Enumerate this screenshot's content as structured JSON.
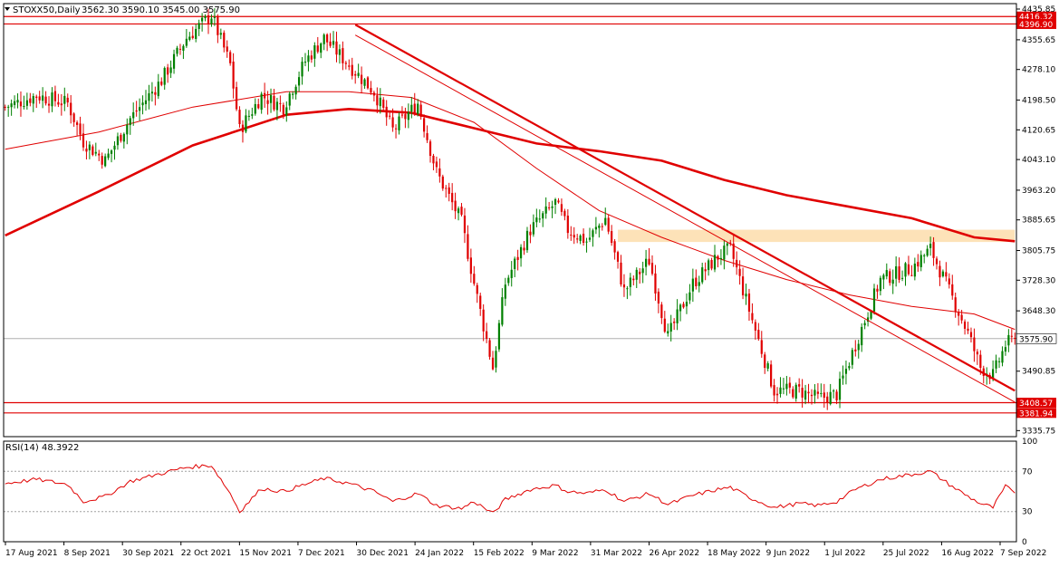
{
  "header": {
    "symbol": "STOXX50,Daily",
    "ohlc": "3562.30 3590.10 3545.00 3575.90",
    "rsi_label": "RSI(14) 48.3922"
  },
  "colors": {
    "bull": "#008000",
    "bear": "#e00000",
    "ma": "#e00000",
    "zone": "#fde2b8",
    "grid": "#c8c8c8",
    "axis": "#000000",
    "price_tag": "#e00000"
  },
  "chart_data": {
    "type": "candlestick",
    "title": "STOXX50,Daily",
    "price_axis_ticks": [
      "4435.85",
      "4355.65",
      "4278.10",
      "4198.50",
      "4120.65",
      "4043.10",
      "3963.20",
      "3885.65",
      "3805.75",
      "3728.30",
      "3648.30",
      "3490.85",
      "3335.75"
    ],
    "price_axis_range": [
      3320,
      4450
    ],
    "date_labels": [
      "17 Aug 2021",
      "8 Sep 2021",
      "30 Sep 2021",
      "22 Oct 2021",
      "15 Nov 2021",
      "7 Dec 2021",
      "30 Dec 2021",
      "24 Jan 2022",
      "15 Feb 2022",
      "9 Mar 2022",
      "31 Mar 2022",
      "26 Apr 2022",
      "18 May 2022",
      "9 Jun 2022",
      "1 Jul 2022",
      "25 Jul 2022",
      "16 Aug 2022",
      "7 Sep 2022"
    ],
    "close_anchors": [
      [
        0,
        4180
      ],
      [
        10,
        4210
      ],
      [
        20,
        4190
      ],
      [
        25,
        4090
      ],
      [
        32,
        4040
      ],
      [
        40,
        4150
      ],
      [
        50,
        4250
      ],
      [
        58,
        4360
      ],
      [
        66,
        4420
      ],
      [
        72,
        4290
      ],
      [
        75,
        4120
      ],
      [
        82,
        4210
      ],
      [
        89,
        4180
      ],
      [
        96,
        4300
      ],
      [
        102,
        4360
      ],
      [
        110,
        4290
      ],
      [
        118,
        4220
      ],
      [
        124,
        4120
      ],
      [
        132,
        4190
      ],
      [
        138,
        4010
      ],
      [
        146,
        3880
      ],
      [
        150,
        3720
      ],
      [
        156,
        3500
      ],
      [
        160,
        3720
      ],
      [
        168,
        3860
      ],
      [
        176,
        3930
      ],
      [
        180,
        3860
      ],
      [
        186,
        3830
      ],
      [
        192,
        3890
      ],
      [
        198,
        3700
      ],
      [
        206,
        3780
      ],
      [
        212,
        3580
      ],
      [
        220,
        3720
      ],
      [
        228,
        3790
      ],
      [
        232,
        3810
      ],
      [
        238,
        3650
      ],
      [
        246,
        3440
      ],
      [
        254,
        3440
      ],
      [
        260,
        3420
      ],
      [
        266,
        3430
      ],
      [
        272,
        3560
      ],
      [
        280,
        3730
      ],
      [
        290,
        3760
      ],
      [
        296,
        3810
      ],
      [
        302,
        3700
      ],
      [
        308,
        3590
      ],
      [
        312,
        3500
      ],
      [
        316,
        3480
      ],
      [
        320,
        3560
      ],
      [
        323,
        3575.9
      ]
    ],
    "moving_averages": [
      {
        "period_kind": "slow",
        "points": [
          [
            0,
            3845
          ],
          [
            30,
            3960
          ],
          [
            60,
            4080
          ],
          [
            90,
            4160
          ],
          [
            110,
            4175
          ],
          [
            130,
            4165
          ],
          [
            150,
            4125
          ],
          [
            170,
            4085
          ],
          [
            190,
            4065
          ],
          [
            210,
            4040
          ],
          [
            230,
            3990
          ],
          [
            250,
            3950
          ],
          [
            270,
            3920
          ],
          [
            290,
            3890
          ],
          [
            310,
            3840
          ],
          [
            323,
            3830
          ]
        ]
      },
      {
        "period_kind": "medium",
        "points": [
          [
            0,
            4070
          ],
          [
            30,
            4115
          ],
          [
            60,
            4180
          ],
          [
            90,
            4220
          ],
          [
            110,
            4220
          ],
          [
            130,
            4205
          ],
          [
            150,
            4140
          ],
          [
            170,
            4020
          ],
          [
            190,
            3910
          ],
          [
            210,
            3840
          ],
          [
            230,
            3780
          ],
          [
            250,
            3730
          ],
          [
            270,
            3690
          ],
          [
            290,
            3660
          ],
          [
            310,
            3640
          ],
          [
            323,
            3600
          ]
        ]
      }
    ],
    "trendlines": [
      {
        "points": [
          [
            112,
            4395
          ],
          [
            323,
            3440
          ]
        ],
        "weight": "thick"
      },
      {
        "points": [
          [
            112,
            4368
          ],
          [
            323,
            3410
          ]
        ],
        "weight": "thin"
      }
    ],
    "horizontal_levels": [
      {
        "value": 4416.32,
        "label": "4416.32"
      },
      {
        "value": 4396.9,
        "label": "4396.90"
      },
      {
        "value": 3408.57,
        "label": "3408.57"
      },
      {
        "value": 3381.94,
        "label": "3381.94"
      }
    ],
    "current_price": {
      "value": 3575.9,
      "label": "3575.90"
    },
    "zone": {
      "from_bar": 196,
      "to_bar": 323,
      "low": 3828,
      "high": 3860
    },
    "rsi": {
      "label": "RSI(14) 48.3922",
      "range": [
        0,
        100
      ],
      "ticks": [
        "100",
        "70",
        "30",
        "0"
      ],
      "levels": [
        70,
        30
      ],
      "anchors": [
        [
          0,
          58
        ],
        [
          10,
          62
        ],
        [
          20,
          57
        ],
        [
          25,
          40
        ],
        [
          32,
          45
        ],
        [
          40,
          60
        ],
        [
          50,
          68
        ],
        [
          58,
          74
        ],
        [
          66,
          76
        ],
        [
          72,
          48
        ],
        [
          75,
          30
        ],
        [
          82,
          53
        ],
        [
          89,
          50
        ],
        [
          96,
          57
        ],
        [
          102,
          63
        ],
        [
          110,
          58
        ],
        [
          118,
          50
        ],
        [
          124,
          40
        ],
        [
          132,
          48
        ],
        [
          138,
          36
        ],
        [
          146,
          33
        ],
        [
          150,
          40
        ],
        [
          156,
          28
        ],
        [
          160,
          42
        ],
        [
          168,
          52
        ],
        [
          176,
          56
        ],
        [
          180,
          50
        ],
        [
          186,
          48
        ],
        [
          192,
          52
        ],
        [
          198,
          40
        ],
        [
          206,
          48
        ],
        [
          212,
          37
        ],
        [
          220,
          46
        ],
        [
          228,
          52
        ],
        [
          232,
          54
        ],
        [
          238,
          44
        ],
        [
          246,
          34
        ],
        [
          254,
          38
        ],
        [
          260,
          36
        ],
        [
          266,
          40
        ],
        [
          272,
          52
        ],
        [
          280,
          62
        ],
        [
          290,
          67
        ],
        [
          296,
          70
        ],
        [
          302,
          57
        ],
        [
          308,
          45
        ],
        [
          312,
          38
        ],
        [
          316,
          34
        ],
        [
          320,
          55
        ],
        [
          323,
          48.39
        ]
      ]
    }
  }
}
